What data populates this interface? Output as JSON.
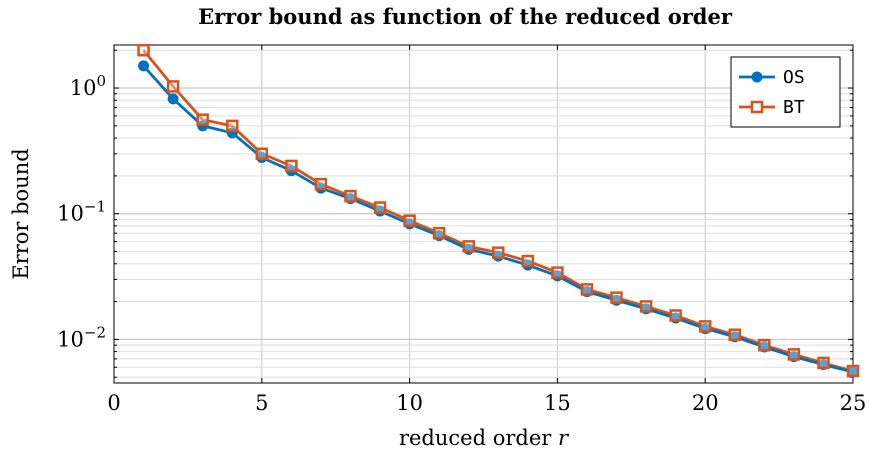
{
  "chart_data": {
    "type": "line",
    "title": "Error bound as function of the reduced order",
    "xlabel": "reduced order",
    "xlabel_symbol": "r",
    "ylabel": "Error bound",
    "xlim": [
      0,
      25
    ],
    "ylim": [
      0.0045,
      2.2
    ],
    "yscale": "log",
    "grid": true,
    "legend_position": "top-right",
    "x_ticks": [
      0,
      5,
      10,
      15,
      20,
      25
    ],
    "y_ticks": [
      {
        "value": 1,
        "base": "10",
        "exp": "0"
      },
      {
        "value": 0.1,
        "base": "10",
        "exp": "−1"
      },
      {
        "value": 0.01,
        "base": "10",
        "exp": "−2"
      }
    ],
    "x": [
      1,
      2,
      3,
      4,
      5,
      6,
      7,
      8,
      9,
      10,
      11,
      12,
      13,
      14,
      15,
      16,
      17,
      18,
      19,
      20,
      21,
      22,
      23,
      24,
      25
    ],
    "series": [
      {
        "name": "OS",
        "color": "#0072BD",
        "marker": "circle",
        "values": [
          1.5,
          0.82,
          0.5,
          0.44,
          0.28,
          0.22,
          0.16,
          0.132,
          0.105,
          0.083,
          0.067,
          0.052,
          0.046,
          0.039,
          0.032,
          0.024,
          0.0205,
          0.0175,
          0.0148,
          0.0122,
          0.0105,
          0.0087,
          0.0073,
          0.0063,
          0.0055
        ]
      },
      {
        "name": "BT",
        "color": "#D95319",
        "marker": "square",
        "values": [
          2.0,
          1.03,
          0.56,
          0.5,
          0.3,
          0.24,
          0.172,
          0.138,
          0.112,
          0.088,
          0.07,
          0.055,
          0.049,
          0.042,
          0.034,
          0.025,
          0.0215,
          0.0183,
          0.0155,
          0.0127,
          0.0109,
          0.009,
          0.0076,
          0.0065,
          0.0056
        ]
      }
    ]
  }
}
